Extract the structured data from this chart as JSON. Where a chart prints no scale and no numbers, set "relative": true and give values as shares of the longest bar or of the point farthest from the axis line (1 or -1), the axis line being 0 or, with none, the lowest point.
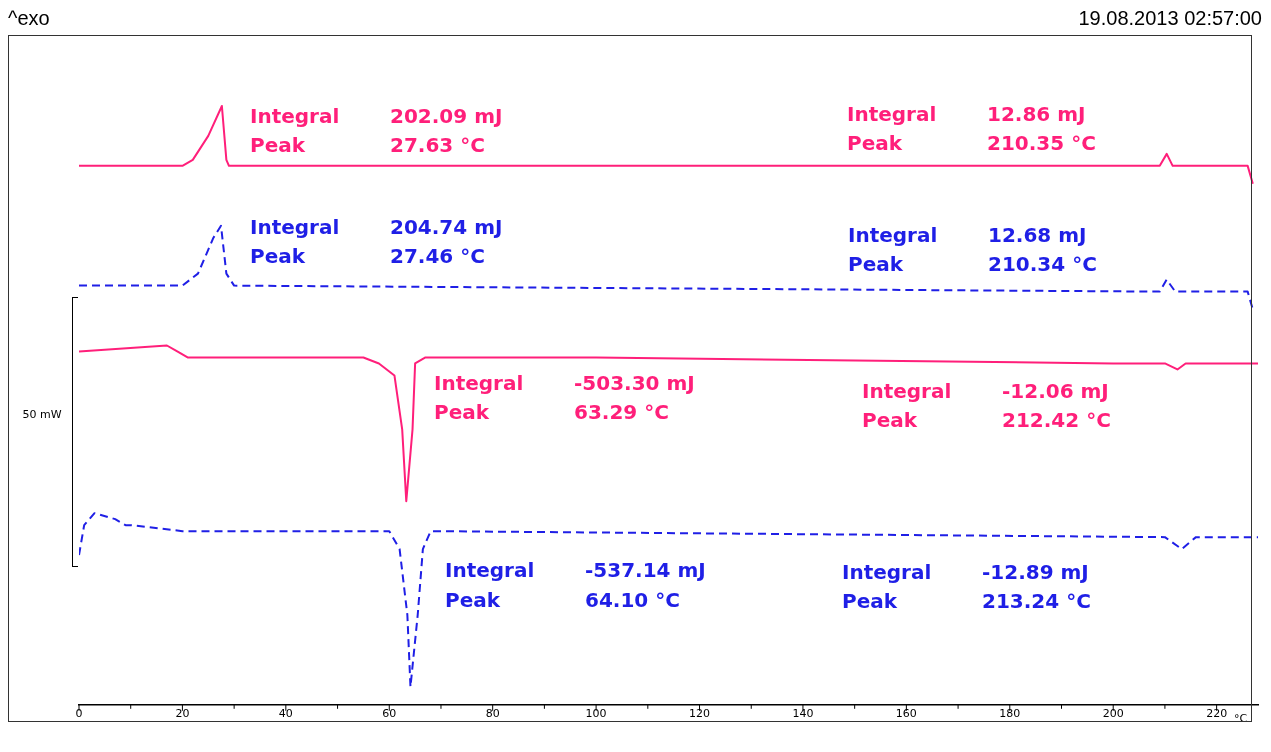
{
  "chart_data": {
    "type": "line",
    "relative": true,
    "xlabel": "°C",
    "xlim": [
      0,
      228
    ],
    "xticks": [
      0,
      {
        "value": 10,
        "label": null
      },
      20,
      {
        "value": 30,
        "label": null
      },
      40,
      {
        "value": 50,
        "label": null
      },
      60,
      {
        "value": 70,
        "label": null
      },
      80,
      {
        "value": 90,
        "label": null
      },
      100,
      {
        "value": 110,
        "label": null
      },
      120,
      {
        "value": 130,
        "label": null
      },
      140,
      {
        "value": 150,
        "label": null
      },
      160,
      {
        "value": 170,
        "label": null
      },
      180,
      {
        "value": 190,
        "label": null
      },
      200,
      {
        "value": 210,
        "label": null
      },
      220
    ],
    "grid": false,
    "legend": false,
    "marker": "none",
    "series": [
      {
        "color": "#ff1f7a",
        "line_style": "solid",
        "x": [
          0,
          20,
          22,
          25,
          27.63,
          28.5,
          29,
          140,
          209,
          210.35,
          211.5,
          226,
          227
        ],
        "values": [
          0.9,
          0.9,
          0.91,
          0.95,
          1.0,
          0.91,
          0.9,
          0.9,
          0.9,
          0.92,
          0.9,
          0.9,
          0.87
        ]
      },
      {
        "color": "#1f1fe6",
        "line_style": "dashed",
        "x": [
          0,
          20,
          23,
          26,
          27.46,
          28.5,
          30,
          209,
          210.34,
          212,
          226,
          227
        ],
        "values": [
          0.7,
          0.7,
          0.72,
          0.78,
          0.8,
          0.72,
          0.7,
          0.69,
          0.71,
          0.69,
          0.69,
          0.66
        ]
      },
      {
        "color": "#ff1f7a",
        "line_style": "solid",
        "x": [
          0,
          17,
          19,
          21,
          40,
          55,
          58,
          61,
          62.5,
          63.29,
          64.5,
          65,
          67,
          100,
          200,
          210,
          212.42,
          214,
          228
        ],
        "values": [
          0.59,
          0.6,
          0.59,
          0.58,
          0.58,
          0.58,
          0.57,
          0.55,
          0.46,
          0.34,
          0.46,
          0.57,
          0.58,
          0.58,
          0.57,
          0.57,
          0.56,
          0.57,
          0.57
        ]
      },
      {
        "color": "#1f1fe6",
        "line_style": "dashed",
        "x": [
          0,
          1,
          3,
          7,
          9,
          10,
          20,
          55,
          60,
          62,
          63.5,
          64.1,
          65.5,
          66.5,
          68,
          210,
          213.24,
          216,
          228
        ],
        "values": [
          0.25,
          0.3,
          0.32,
          0.31,
          0.3,
          0.3,
          0.29,
          0.29,
          0.29,
          0.26,
          0.15,
          0.03,
          0.15,
          0.26,
          0.29,
          0.28,
          0.26,
          0.28,
          0.28
        ]
      }
    ],
    "annotations": [
      "Integral 202.09 mJ",
      "Peak 27.63 °C",
      "Integral 12.86 mJ",
      "Peak 210.35 °C",
      "Integral 204.74 mJ",
      "Peak 27.46 °C",
      "Integral 12.68 mJ",
      "Peak 210.34 °C",
      "Integral -503.30 mJ",
      "Peak 63.29 °C",
      "Integral -12.06 mJ",
      "Peak 212.42 °C",
      "Integral -537.14 mJ",
      "Peak 64.10 °C",
      "Integral -12.89 mJ",
      "Peak 213.24 °C",
      "^exo",
      "19.08.2013 02:57:00",
      "50 mW"
    ]
  }
}
